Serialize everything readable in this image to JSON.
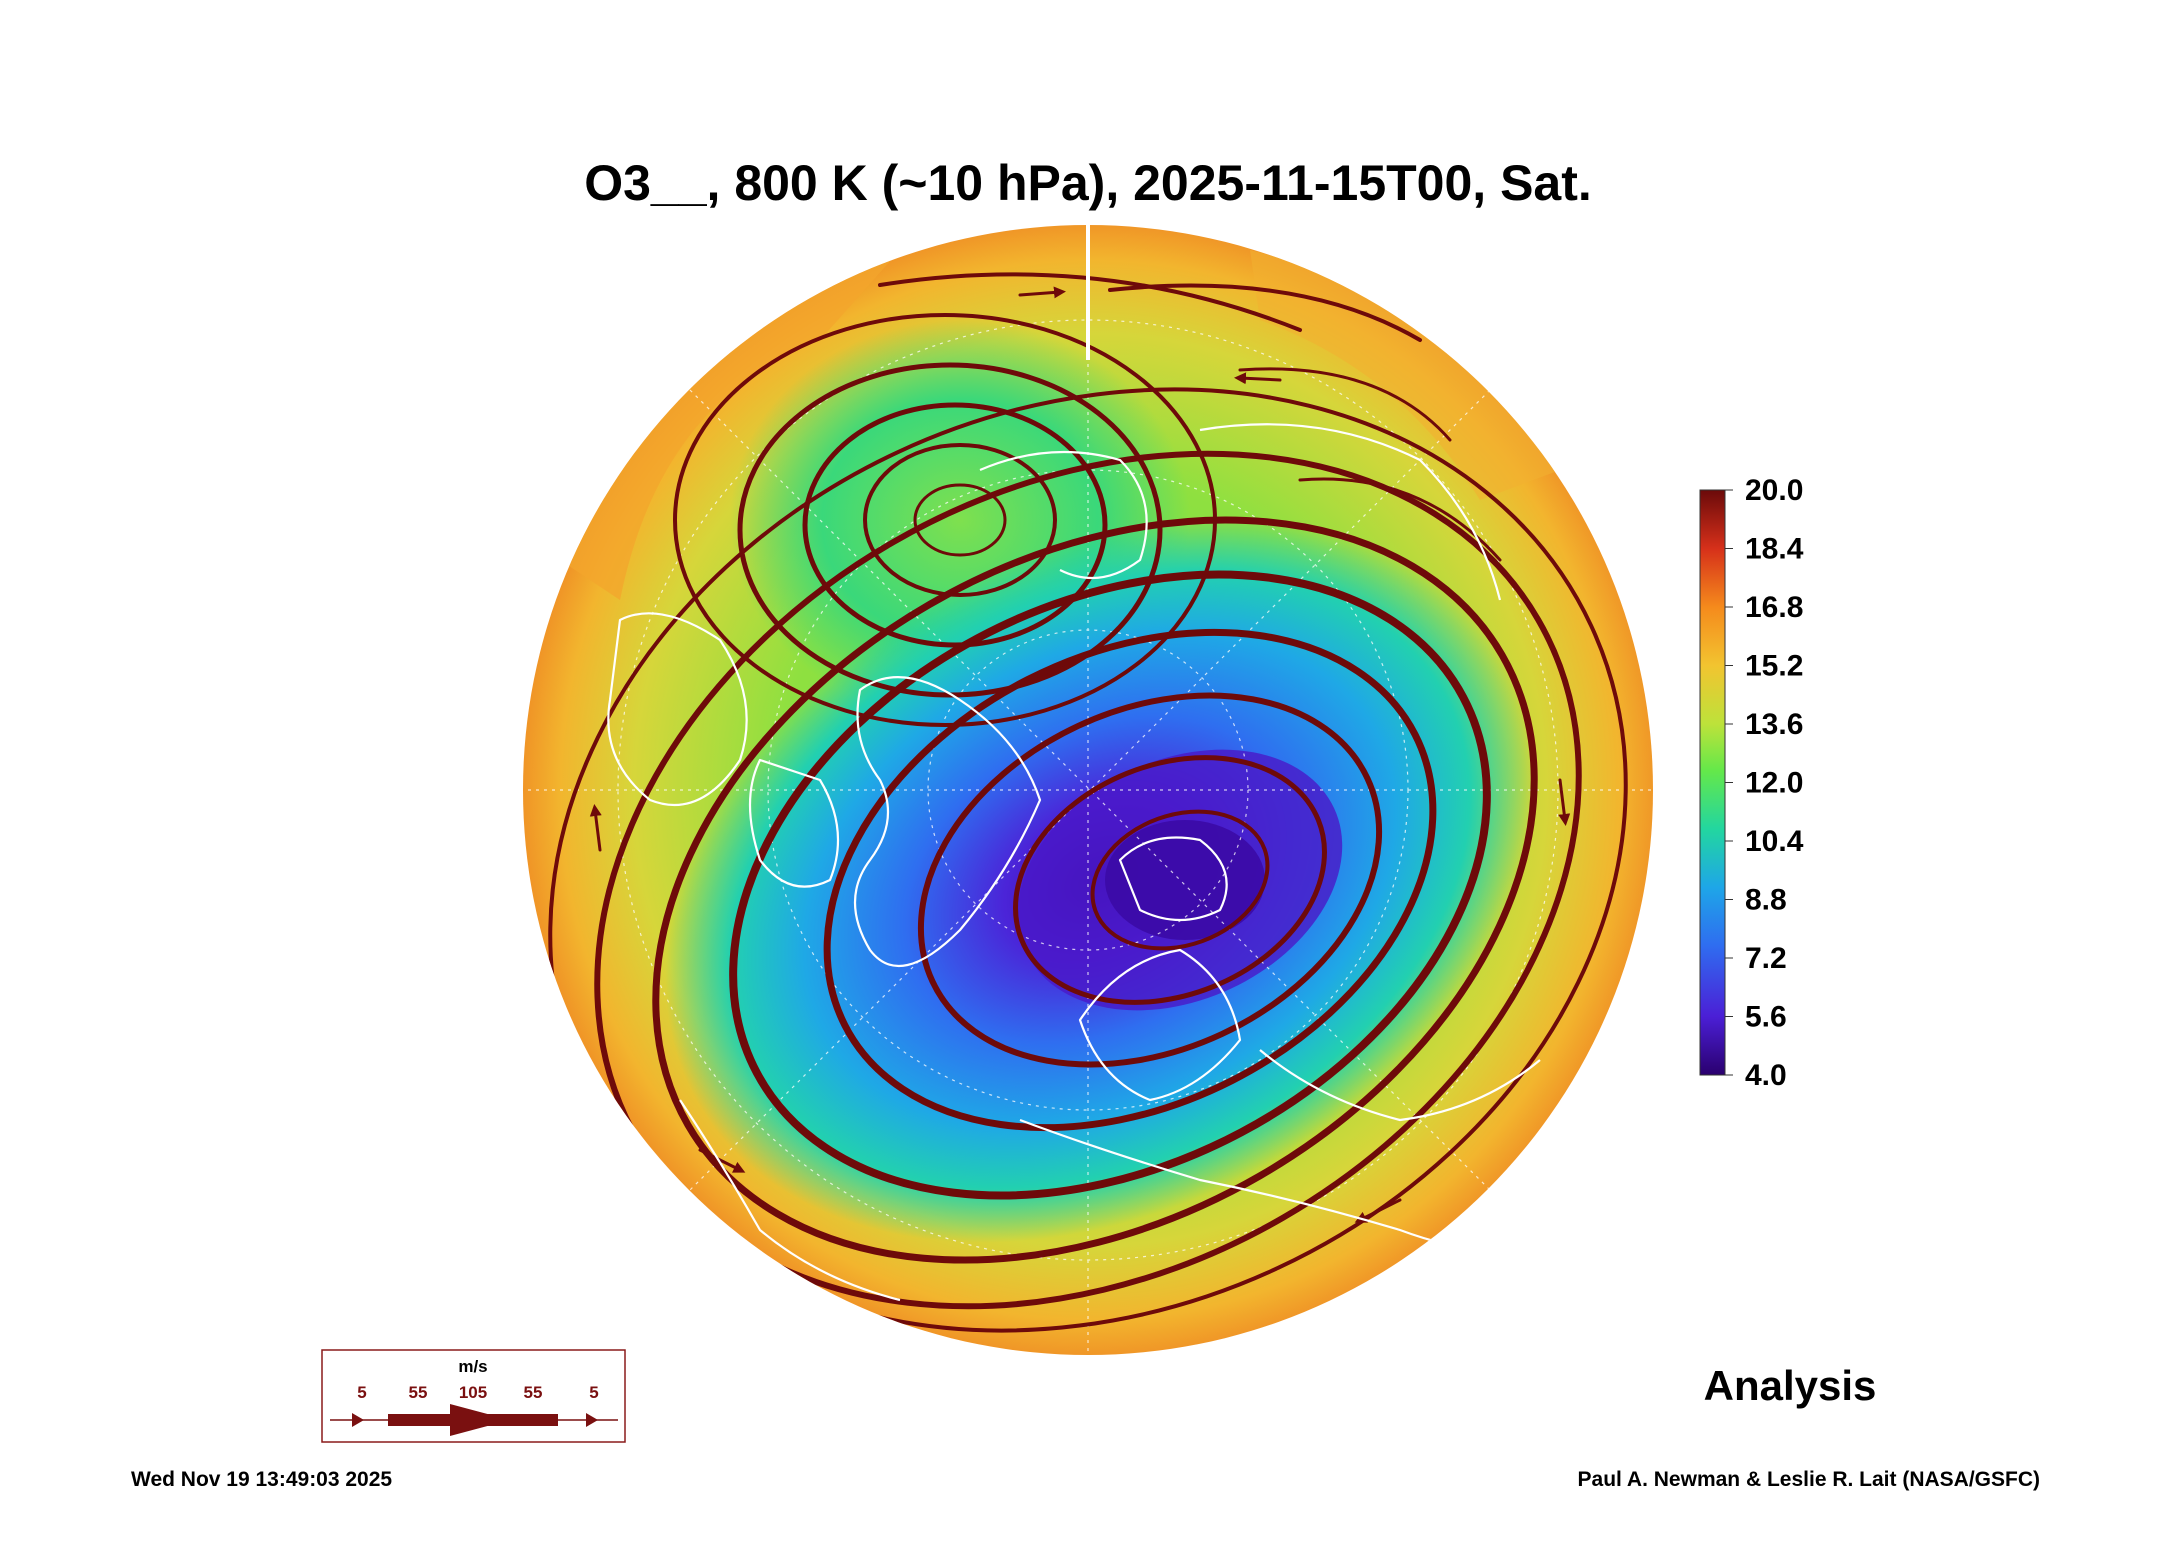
{
  "title": "O3__, 800 K (~10 hPa), 2025-11-15T00, Sat.",
  "colorbar": {
    "ticks": [
      "20.0",
      "18.4",
      "16.8",
      "15.2",
      "13.6",
      "12.0",
      "10.4",
      "8.8",
      "7.2",
      "5.6",
      "4.0"
    ],
    "min": 4.0,
    "max": 20.0,
    "colors": [
      "#2a006e",
      "#4b1fd6",
      "#2f6cf0",
      "#1ea6e8",
      "#22d6a0",
      "#64e84a",
      "#bde23a",
      "#f2c430",
      "#f58a1c",
      "#d6301a",
      "#6b0a0a"
    ]
  },
  "vector_legend": {
    "unit": "m/s",
    "labels": [
      "5",
      "55",
      "105",
      "55",
      "5"
    ],
    "color": "#7a1010"
  },
  "analysis_label": "Analysis",
  "timestamp": "Wed Nov 19 13:49:03 2025",
  "credit": "Paul A. Newman & Leslie R. Lait (NASA/GSFC)",
  "map": {
    "projection": "north-polar orthographic",
    "field_min_center": "low ozone vortex over Arctic / Scandinavia",
    "streamline_color": "#6e0a0a",
    "coastline_color": "#ffffff"
  }
}
